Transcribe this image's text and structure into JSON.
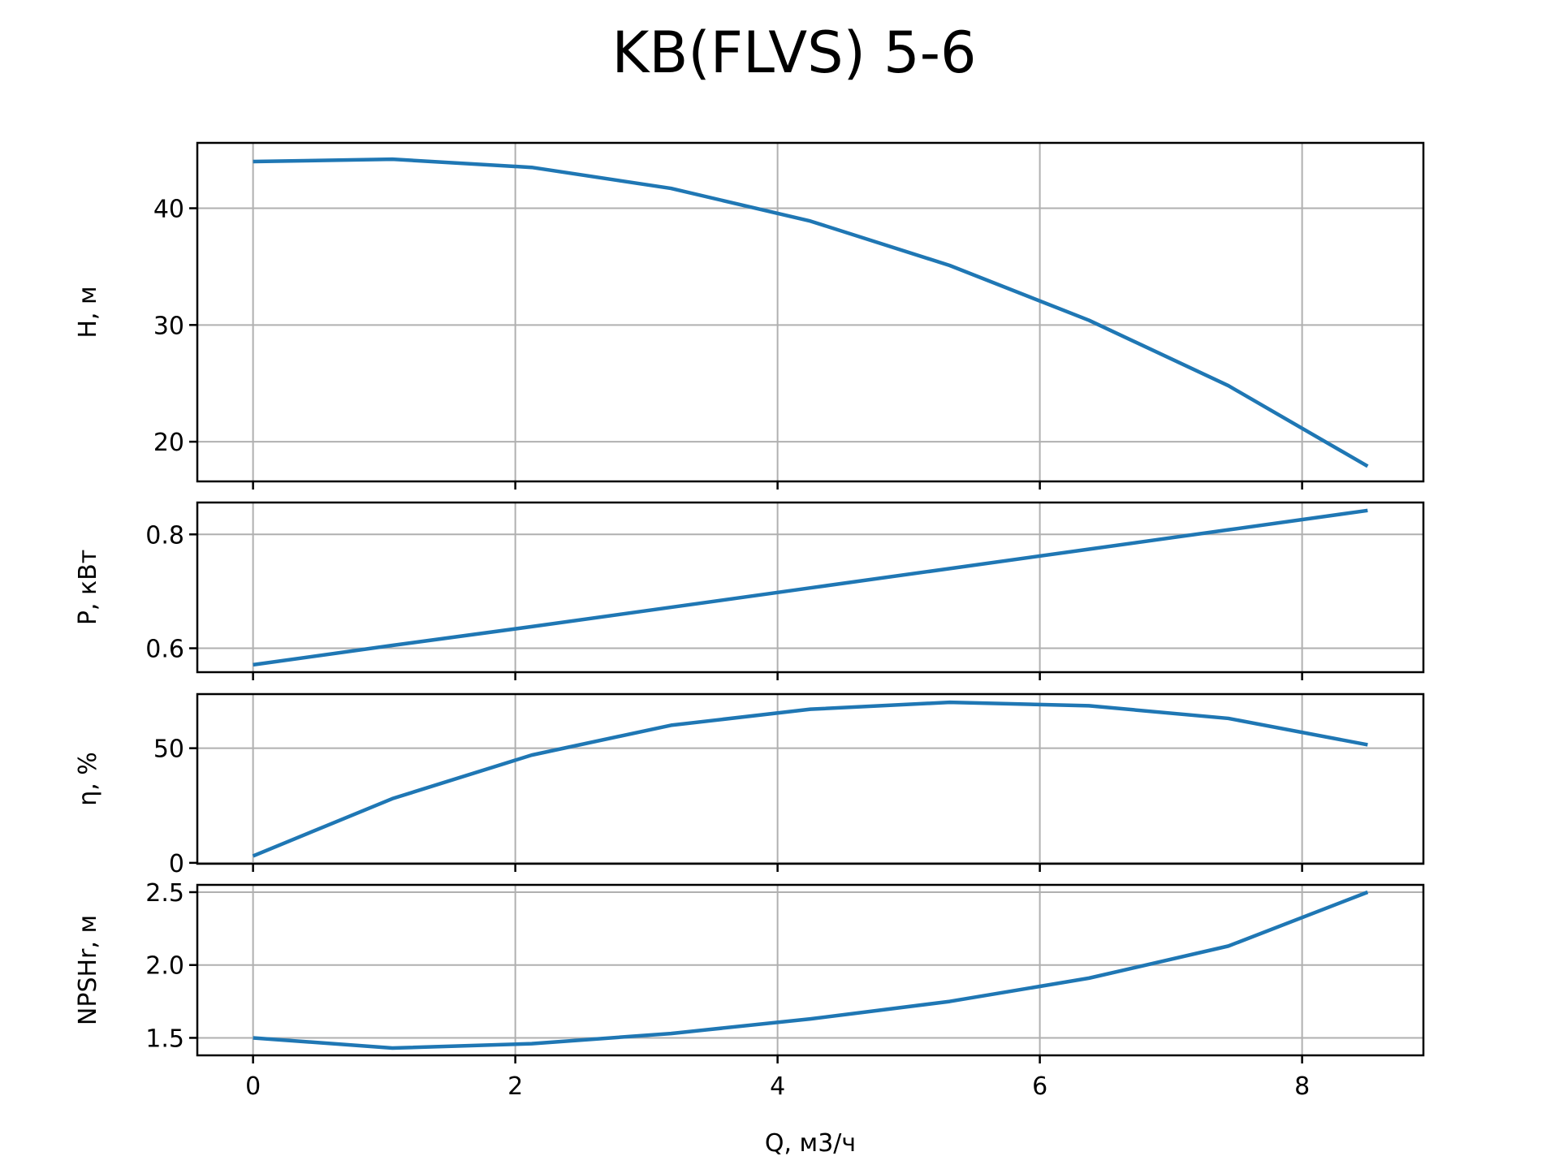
{
  "chart_data": {
    "type": "line",
    "title": "KB(FLVS) 5-6",
    "xlabel": "Q, м3/ч",
    "x": [
      0,
      1.0625,
      2.125,
      3.1875,
      4.25,
      5.3125,
      6.375,
      7.4375,
      8.5
    ],
    "xlim": [
      -0.425,
      8.925
    ],
    "xticks": [
      0,
      2,
      4,
      6,
      8
    ],
    "xtick_labels": [
      "0",
      "2",
      "4",
      "6",
      "8"
    ],
    "grid": true,
    "subplots": [
      {
        "ylabel": "H, м",
        "values": [
          44.0,
          44.2,
          43.5,
          41.7,
          38.9,
          35.1,
          30.4,
          24.8,
          17.9
        ],
        "ylim": [
          16.6,
          45.6
        ],
        "yticks": [
          20,
          30,
          40
        ],
        "ytick_labels": [
          "20",
          "30",
          "40"
        ]
      },
      {
        "ylabel": "P, кВт",
        "values": [
          0.571,
          0.605,
          0.638,
          0.672,
          0.706,
          0.74,
          0.774,
          0.808,
          0.842
        ],
        "ylim": [
          0.558,
          0.856
        ],
        "yticks": [
          0.6,
          0.8
        ],
        "ytick_labels": [
          "0.6",
          "0.8"
        ]
      },
      {
        "ylabel": "η, %",
        "values": [
          3,
          28,
          47,
          60,
          67,
          70,
          68.5,
          63,
          51.5
        ],
        "ylim": [
          -0.4,
          73.6
        ],
        "yticks": [
          0,
          50
        ],
        "ytick_labels": [
          "0",
          "50"
        ]
      },
      {
        "ylabel": "NPSHr, м",
        "values": [
          1.5,
          1.43,
          1.46,
          1.53,
          1.63,
          1.75,
          1.91,
          2.13,
          2.5
        ],
        "ylim": [
          1.38,
          2.55
        ],
        "yticks": [
          1.5,
          2.0,
          2.5
        ],
        "ytick_labels": [
          "1.5",
          "2.0",
          "2.5"
        ]
      }
    ]
  },
  "colors": {
    "series": "#1f77b4",
    "grid": "#b0b0b0",
    "frame": "#000000"
  }
}
